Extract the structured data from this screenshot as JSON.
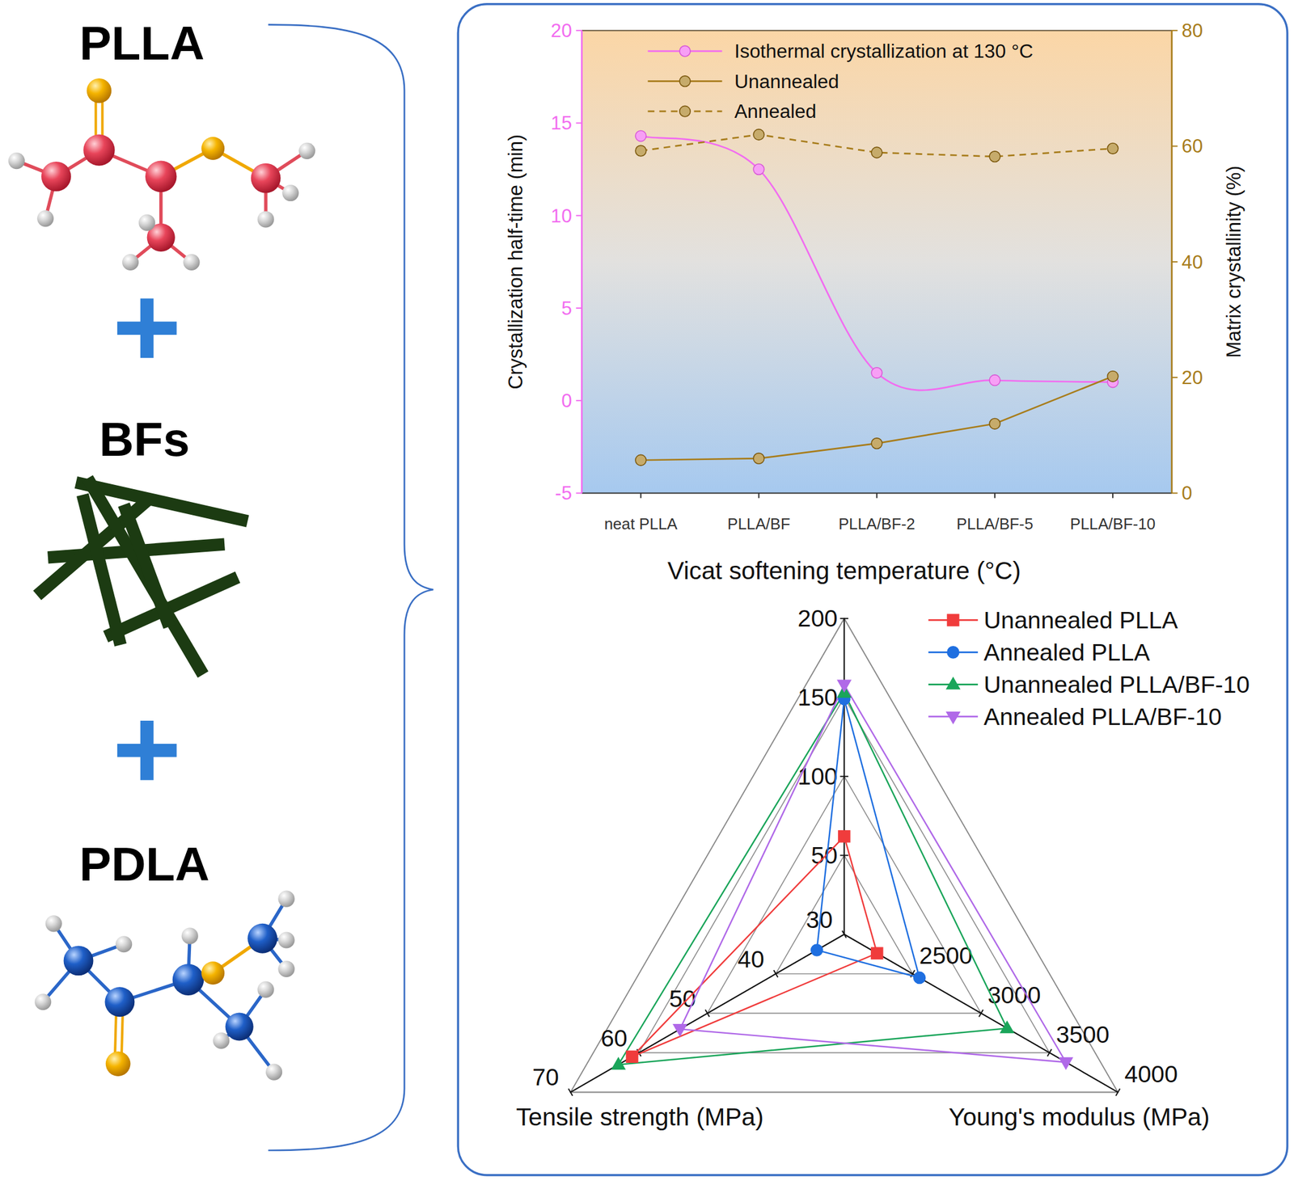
{
  "components": [
    {
      "label": "PLLA"
    },
    {
      "label": "BFs"
    },
    {
      "label": "PDLA"
    }
  ],
  "chart_data": [
    {
      "type": "line",
      "categories": [
        "neat PLLA",
        "PLLA/BF",
        "PLLA/BF-2",
        "PLLA/BF-5",
        "PLLA/BF-10"
      ],
      "ylabel": "Crystallization half-time (min)",
      "y2label": "Matrix crystallinity (%)",
      "ylim": [
        -5,
        20
      ],
      "yticks": [
        -5,
        0,
        5,
        10,
        15,
        20
      ],
      "y2lim": [
        0,
        80
      ],
      "y2ticks": [
        0,
        20,
        40,
        60,
        80
      ],
      "grid": false,
      "legend": "upper left",
      "series": [
        {
          "name": "Isothermal crystallization at 130 °C",
          "color": "#f26cf0",
          "marker": "circle",
          "line_style": "smooth",
          "values": [
            14.3,
            12.5,
            1.5,
            1.1,
            1.0
          ]
        },
        {
          "name": "Unannealed",
          "color": "#a87d1c",
          "axis": "y2",
          "marker": "circle",
          "line_style": "solid",
          "values": [
            5.7,
            6.0,
            8.6,
            12.0,
            20.2
          ]
        },
        {
          "name": "Annealed",
          "color": "#a87d1c",
          "axis": "y2",
          "marker": "circle",
          "line_style": "dashed",
          "values": [
            59.2,
            62.0,
            58.9,
            58.2,
            59.6
          ]
        }
      ]
    },
    {
      "type": "radar",
      "axes": [
        {
          "label": "Vicat softening temperature (°C)",
          "lim": [
            0,
            200
          ],
          "ticks": [
            50,
            100,
            150,
            200
          ]
        },
        {
          "label": "Young's modulus (MPa)",
          "lim": [
            2000,
            4000
          ],
          "ticks": [
            2500,
            3000,
            3500,
            4000
          ]
        },
        {
          "label": "Tensile strength (MPa)",
          "lim": [
            30,
            70
          ],
          "ticks": [
            30,
            40,
            50,
            60,
            70
          ]
        }
      ],
      "legend": "upper right",
      "series": [
        {
          "name": "Unannealed PLLA",
          "color": "#f03c3c",
          "marker": "square",
          "values": [
            62,
            2240,
            61
          ]
        },
        {
          "name": "Annealed PLLA",
          "color": "#1f6fe0",
          "marker": "circle",
          "values": [
            149,
            2550,
            34
          ]
        },
        {
          "name": "Unannealed PLLA/BF-10",
          "color": "#1aa55a",
          "marker": "triangle",
          "values": [
            153,
            3190,
            63
          ]
        },
        {
          "name": "Annealed PLLA/BF-10",
          "color": "#b069e8",
          "marker": "triangle-down",
          "values": [
            158,
            3620,
            54
          ]
        }
      ]
    }
  ]
}
